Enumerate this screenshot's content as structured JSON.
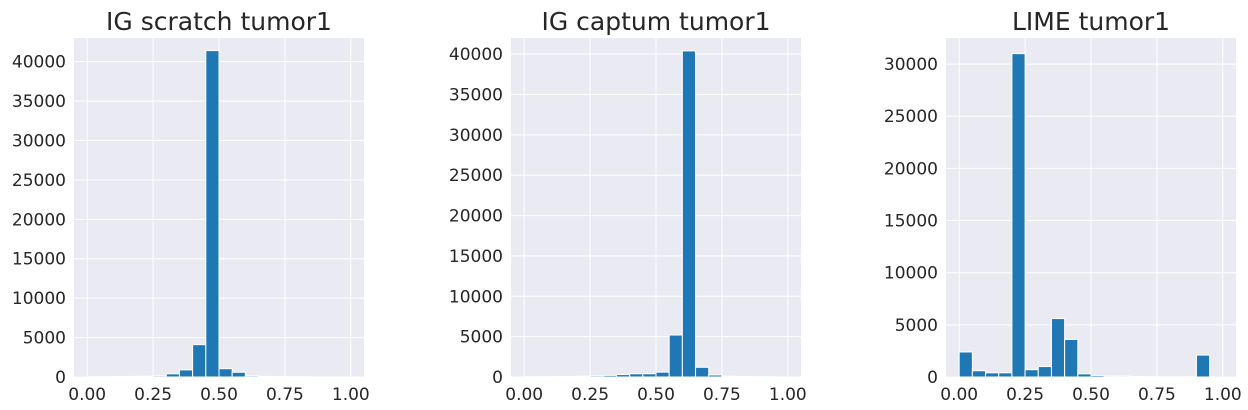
{
  "chart_data": [
    {
      "type": "bar",
      "title": "IG scratch tumor1",
      "bins": 20,
      "xlim": [
        -0.05,
        1.05
      ],
      "ylim": [
        0,
        43000
      ],
      "xticks": [
        "0.00",
        "0.25",
        "0.50",
        "0.75",
        "1.00"
      ],
      "yticks": [
        "0",
        "5000",
        "10000",
        "15000",
        "20000",
        "25000",
        "30000",
        "35000",
        "40000"
      ],
      "x": [
        0.0,
        0.05,
        0.1,
        0.15,
        0.2,
        0.25,
        0.3,
        0.35,
        0.4,
        0.45,
        0.5,
        0.55,
        0.6,
        0.65,
        0.7,
        0.75,
        0.8,
        0.85,
        0.9,
        0.95
      ],
      "values": [
        30,
        40,
        60,
        80,
        100,
        150,
        400,
        900,
        4100,
        41400,
        1050,
        600,
        150,
        80,
        50,
        40,
        30,
        20,
        15,
        10
      ],
      "grid": true,
      "color": "#1f77b4"
    },
    {
      "type": "bar",
      "title": "IG captum tumor1",
      "bins": 20,
      "xlim": [
        -0.05,
        1.05
      ],
      "ylim": [
        0,
        42000
      ],
      "xticks": [
        "0.00",
        "0.25",
        "0.50",
        "0.75",
        "1.00"
      ],
      "yticks": [
        "0",
        "5000",
        "10000",
        "15000",
        "20000",
        "25000",
        "30000",
        "35000",
        "40000"
      ],
      "x": [
        0.0,
        0.05,
        0.1,
        0.15,
        0.2,
        0.25,
        0.3,
        0.35,
        0.4,
        0.45,
        0.5,
        0.55,
        0.6,
        0.65,
        0.7,
        0.75,
        0.8,
        0.85,
        0.9,
        0.95
      ],
      "values": [
        30,
        40,
        50,
        60,
        100,
        150,
        200,
        300,
        400,
        400,
        600,
        5200,
        40400,
        1200,
        250,
        100,
        60,
        40,
        30,
        20
      ],
      "grid": true,
      "color": "#1f77b4"
    },
    {
      "type": "bar",
      "title": "LIME tumor1",
      "bins": 20,
      "xlim": [
        -0.05,
        1.05
      ],
      "ylim": [
        0,
        32500
      ],
      "xticks": [
        "0.00",
        "0.25",
        "0.50",
        "0.75",
        "1.00"
      ],
      "yticks": [
        "0",
        "5000",
        "10000",
        "15000",
        "20000",
        "25000",
        "30000"
      ],
      "x": [
        0.0,
        0.05,
        0.1,
        0.15,
        0.2,
        0.25,
        0.3,
        0.35,
        0.4,
        0.45,
        0.5,
        0.55,
        0.6,
        0.65,
        0.7,
        0.75,
        0.8,
        0.85,
        0.9,
        0.95
      ],
      "values": [
        2400,
        600,
        400,
        400,
        31000,
        700,
        1000,
        5600,
        3600,
        300,
        150,
        100,
        100,
        50,
        30,
        20,
        20,
        20,
        2100,
        0
      ],
      "grid": true,
      "color": "#1f77b4"
    }
  ]
}
